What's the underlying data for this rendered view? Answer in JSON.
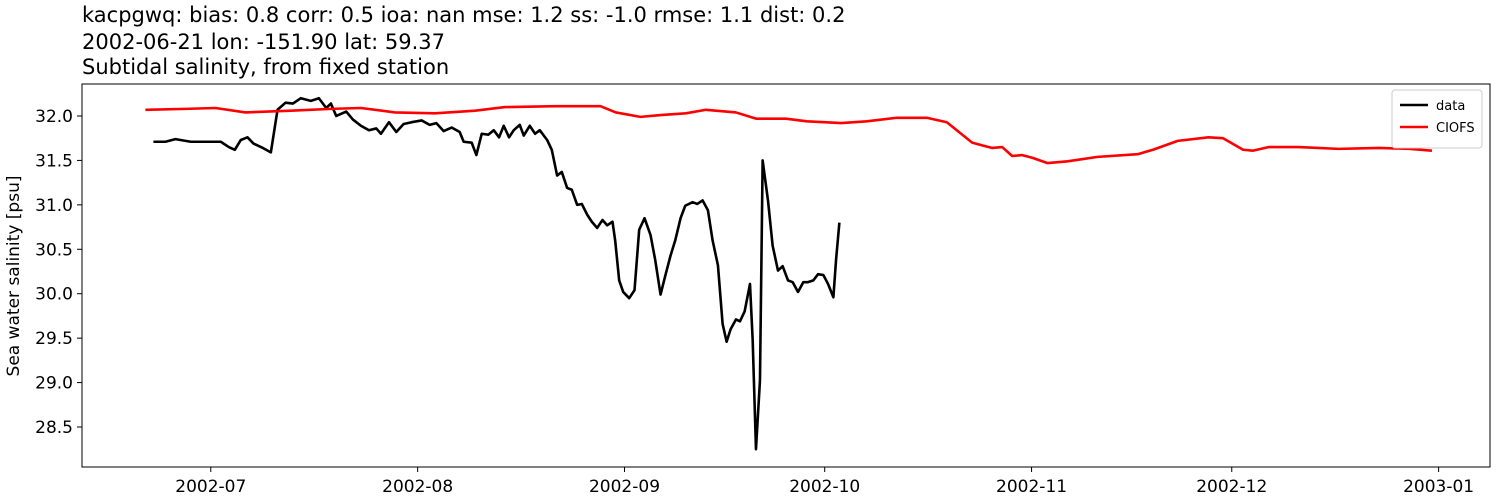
{
  "chart_data": {
    "type": "line",
    "title": "kacpgwq: bias: 0.8  corr: 0.5  ioa: nan  mse: 1.2  ss: -1.0  rmse: 1.1  dist: 0.2",
    "subtitle": "2002-06-21 lon: -151.90 lat: 59.37",
    "subtitle2": "Subtidal salinity, from fixed station",
    "ylabel": "Sea water salinity [psu]",
    "xlim": [
      162.7,
      373.7
    ],
    "xticks": [
      {
        "value": 182,
        "label": "2002-07"
      },
      {
        "value": 213,
        "label": "2002-08"
      },
      {
        "value": 244,
        "label": "2002-09"
      },
      {
        "value": 274,
        "label": "2002-10"
      },
      {
        "value": 305,
        "label": "2002-11"
      },
      {
        "value": 335,
        "label": "2002-12"
      },
      {
        "value": 366,
        "label": "2003-01"
      }
    ],
    "ylim": [
      28.05,
      32.36
    ],
    "yticks": [
      28.5,
      {
        "value": 29,
        "label": "29.0"
      },
      29.5,
      {
        "value": 30,
        "label": "30.0"
      },
      30.5,
      {
        "value": 31,
        "label": "31.0"
      },
      31.5,
      {
        "value": 32,
        "label": "32.0"
      }
    ],
    "grid": false,
    "legend": "upper right",
    "series": [
      {
        "name": "data",
        "color": "#000000",
        "x": [
          173.4,
          175.2,
          176.7,
          179.0,
          183.5,
          184.7,
          185.6,
          186.5,
          187.5,
          188.4,
          189.8,
          191.0,
          192.0,
          193.2,
          194.3,
          195.5,
          197.0,
          198.2,
          199.3,
          200.0,
          200.8,
          202.3,
          203.3,
          204.5,
          205.7,
          206.8,
          207.5,
          208.7,
          209.8,
          210.9,
          212.1,
          213.6,
          214.8,
          215.8,
          216.9,
          218.1,
          219.3,
          219.9,
          221.1,
          221.8,
          222.6,
          223.6,
          224.4,
          225.2,
          225.9,
          226.7,
          227.4,
          228.3,
          228.9,
          229.8,
          230.6,
          231.3,
          232.4,
          233.1,
          233.9,
          234.6,
          235.4,
          236.1,
          236.9,
          237.6,
          238.4,
          239.1,
          239.9,
          240.7,
          241.4,
          242.2,
          242.6,
          243.2,
          243.8,
          244.7,
          245.5,
          246.2,
          247.0,
          247.9,
          248.6,
          249.4,
          250.1,
          250.9,
          251.6,
          252.4,
          253.1,
          254.2,
          254.9,
          255.7,
          256.5,
          257.2,
          258.0,
          258.7,
          259.3,
          259.9,
          260.7,
          261.3,
          262.0,
          262.8,
          263.2,
          263.7,
          264.3,
          264.7,
          265.5,
          266.2,
          267.0,
          267.7,
          268.5,
          269.2,
          270.0,
          270.8,
          271.5,
          272.3,
          273.0,
          273.8,
          274.5,
          275.3,
          275.7,
          276.2
        ],
        "values": [
          31.71,
          31.71,
          31.74,
          31.71,
          31.71,
          31.65,
          31.62,
          31.73,
          31.76,
          31.69,
          31.64,
          31.59,
          32.07,
          32.15,
          32.14,
          32.2,
          32.17,
          32.2,
          32.09,
          32.14,
          32.0,
          32.05,
          31.96,
          31.89,
          31.84,
          31.86,
          31.8,
          31.93,
          31.82,
          31.91,
          31.93,
          31.95,
          31.9,
          31.92,
          31.83,
          31.87,
          31.82,
          31.71,
          31.7,
          31.56,
          31.8,
          31.79,
          31.84,
          31.76,
          31.89,
          31.76,
          31.84,
          31.9,
          31.78,
          31.89,
          31.8,
          31.84,
          31.73,
          31.62,
          31.33,
          31.37,
          31.19,
          31.17,
          31.0,
          31.01,
          30.89,
          30.81,
          30.74,
          30.83,
          30.77,
          30.81,
          30.6,
          30.15,
          30.02,
          29.95,
          30.04,
          30.72,
          30.85,
          30.66,
          30.38,
          29.99,
          30.2,
          30.43,
          30.6,
          30.85,
          30.99,
          31.03,
          31.01,
          31.05,
          30.94,
          30.6,
          30.32,
          29.66,
          29.46,
          29.6,
          29.71,
          29.69,
          29.8,
          30.11,
          29.49,
          28.25,
          29.03,
          31.5,
          31.05,
          30.54,
          30.26,
          30.31,
          30.15,
          30.13,
          30.02,
          30.13,
          30.13,
          30.15,
          30.22,
          30.21,
          30.11,
          29.96,
          30.38,
          30.8
        ]
      },
      {
        "name": "CIOFS",
        "color": "#ff0000",
        "x": [
          172.2,
          178.2,
          182.7,
          187.2,
          194.0,
          200.0,
          204.5,
          209.6,
          215.6,
          221.6,
          226.1,
          233.6,
          240.4,
          242.7,
          246.4,
          249.4,
          253.2,
          256.2,
          260.7,
          263.7,
          268.2,
          271.3,
          276.5,
          280.3,
          284.8,
          289.3,
          292.3,
          294.6,
          296.1,
          297.6,
          299.1,
          300.6,
          302.1,
          303.6,
          305.1,
          307.4,
          310.4,
          314.9,
          320.9,
          323.2,
          326.9,
          331.5,
          333.7,
          336.7,
          338.2,
          340.5,
          345.0,
          351.0,
          357.1,
          361.6,
          365.0
        ],
        "values": [
          32.07,
          32.08,
          32.09,
          32.04,
          32.06,
          32.08,
          32.09,
          32.04,
          32.03,
          32.06,
          32.1,
          32.11,
          32.11,
          32.04,
          31.99,
          32.01,
          32.03,
          32.07,
          32.04,
          31.97,
          31.97,
          31.94,
          31.92,
          31.94,
          31.98,
          31.98,
          31.93,
          31.79,
          31.7,
          31.67,
          31.64,
          31.65,
          31.55,
          31.56,
          31.53,
          31.47,
          31.49,
          31.54,
          31.57,
          31.62,
          31.72,
          31.76,
          31.75,
          31.62,
          31.61,
          31.65,
          31.65,
          31.63,
          31.64,
          31.63,
          31.61
        ]
      }
    ]
  }
}
